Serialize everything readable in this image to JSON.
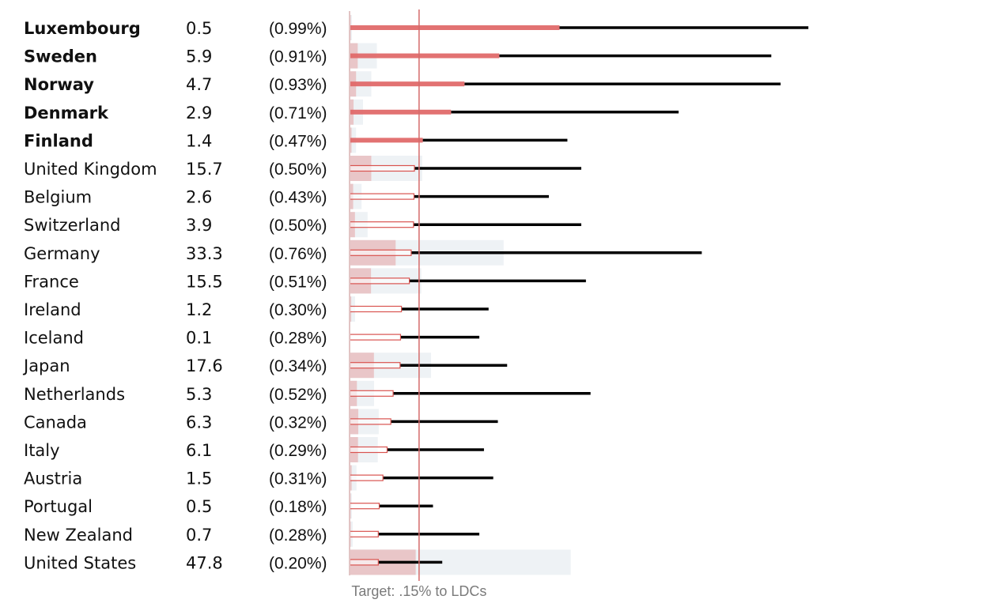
{
  "chart_data": {
    "type": "bar",
    "target_label": "Target: .15% to LDCs",
    "target_value": 0.15,
    "rows": [
      {
        "country": "Luxembourg",
        "bold": true,
        "aid_total": "0.5",
        "gni_pct_label": "(0.99%)",
        "aid_value": 0.5,
        "ldc_pct": 0.453,
        "gni_pct": 0.99
      },
      {
        "country": "Sweden",
        "bold": true,
        "aid_total": "5.9",
        "gni_pct_label": "(0.91%)",
        "aid_value": 5.9,
        "ldc_pct": 0.323,
        "gni_pct": 0.91
      },
      {
        "country": "Norway",
        "bold": true,
        "aid_total": "4.7",
        "gni_pct_label": "(0.93%)",
        "aid_value": 4.7,
        "ldc_pct": 0.248,
        "gni_pct": 0.93
      },
      {
        "country": "Denmark",
        "bold": true,
        "aid_total": "2.9",
        "gni_pct_label": "(0.71%)",
        "aid_value": 2.9,
        "ldc_pct": 0.219,
        "gni_pct": 0.71
      },
      {
        "country": "Finland",
        "bold": true,
        "aid_total": "1.4",
        "gni_pct_label": "(0.47%)",
        "aid_value": 1.4,
        "ldc_pct": 0.158,
        "gni_pct": 0.47
      },
      {
        "country": "United Kingdom",
        "bold": false,
        "aid_total": "15.7",
        "gni_pct_label": "(0.50%)",
        "aid_value": 15.7,
        "ldc_pct": 0.14,
        "gni_pct": 0.5
      },
      {
        "country": "Belgium",
        "bold": false,
        "aid_total": "2.6",
        "gni_pct_label": "(0.43%)",
        "aid_value": 2.6,
        "ldc_pct": 0.139,
        "gni_pct": 0.43
      },
      {
        "country": "Switzerland",
        "bold": false,
        "aid_total": "3.9",
        "gni_pct_label": "(0.50%)",
        "aid_value": 3.9,
        "ldc_pct": 0.138,
        "gni_pct": 0.5
      },
      {
        "country": "Germany",
        "bold": false,
        "aid_total": "33.3",
        "gni_pct_label": "(0.76%)",
        "aid_value": 33.3,
        "ldc_pct": 0.133,
        "gni_pct": 0.76
      },
      {
        "country": "France",
        "bold": false,
        "aid_total": "15.5",
        "gni_pct_label": "(0.51%)",
        "aid_value": 15.5,
        "ldc_pct": 0.129,
        "gni_pct": 0.51
      },
      {
        "country": "Ireland",
        "bold": false,
        "aid_total": "1.2",
        "gni_pct_label": "(0.30%)",
        "aid_value": 1.2,
        "ldc_pct": 0.112,
        "gni_pct": 0.3
      },
      {
        "country": "Iceland",
        "bold": false,
        "aid_total": "0.1",
        "gni_pct_label": "(0.28%)",
        "aid_value": 0.1,
        "ldc_pct": 0.11,
        "gni_pct": 0.28
      },
      {
        "country": "Japan",
        "bold": false,
        "aid_total": "17.6",
        "gni_pct_label": "(0.34%)",
        "aid_value": 17.6,
        "ldc_pct": 0.109,
        "gni_pct": 0.34
      },
      {
        "country": "Netherlands",
        "bold": false,
        "aid_total": "5.3",
        "gni_pct_label": "(0.52%)",
        "aid_value": 5.3,
        "ldc_pct": 0.094,
        "gni_pct": 0.52
      },
      {
        "country": "Canada",
        "bold": false,
        "aid_total": "6.3",
        "gni_pct_label": "(0.32%)",
        "aid_value": 6.3,
        "ldc_pct": 0.089,
        "gni_pct": 0.32
      },
      {
        "country": "Italy",
        "bold": false,
        "aid_total": "6.1",
        "gni_pct_label": "(0.29%)",
        "aid_value": 6.1,
        "ldc_pct": 0.081,
        "gni_pct": 0.29
      },
      {
        "country": "Austria",
        "bold": false,
        "aid_total": "1.5",
        "gni_pct_label": "(0.31%)",
        "aid_value": 1.5,
        "ldc_pct": 0.072,
        "gni_pct": 0.31
      },
      {
        "country": "Portugal",
        "bold": false,
        "aid_total": "0.5",
        "gni_pct_label": "(0.18%)",
        "aid_value": 0.5,
        "ldc_pct": 0.064,
        "gni_pct": 0.18
      },
      {
        "country": "New Zealand",
        "bold": false,
        "aid_total": "0.7",
        "gni_pct_label": "(0.28%)",
        "aid_value": 0.7,
        "ldc_pct": 0.062,
        "gni_pct": 0.28
      },
      {
        "country": "United States",
        "bold": false,
        "aid_total": "47.8",
        "gni_pct_label": "(0.20%)",
        "aid_value": 47.8,
        "ldc_pct": 0.062,
        "gni_pct": 0.2
      }
    ],
    "colors": {
      "ldc_bar": "#e06666",
      "ldc_bar_outline": "#d9534f",
      "gni_line": "#000000",
      "aid_fill": "#e9c6c8",
      "aid_bg": "#eef2f5",
      "target_line": "#d46a6a"
    },
    "grid": false
  }
}
